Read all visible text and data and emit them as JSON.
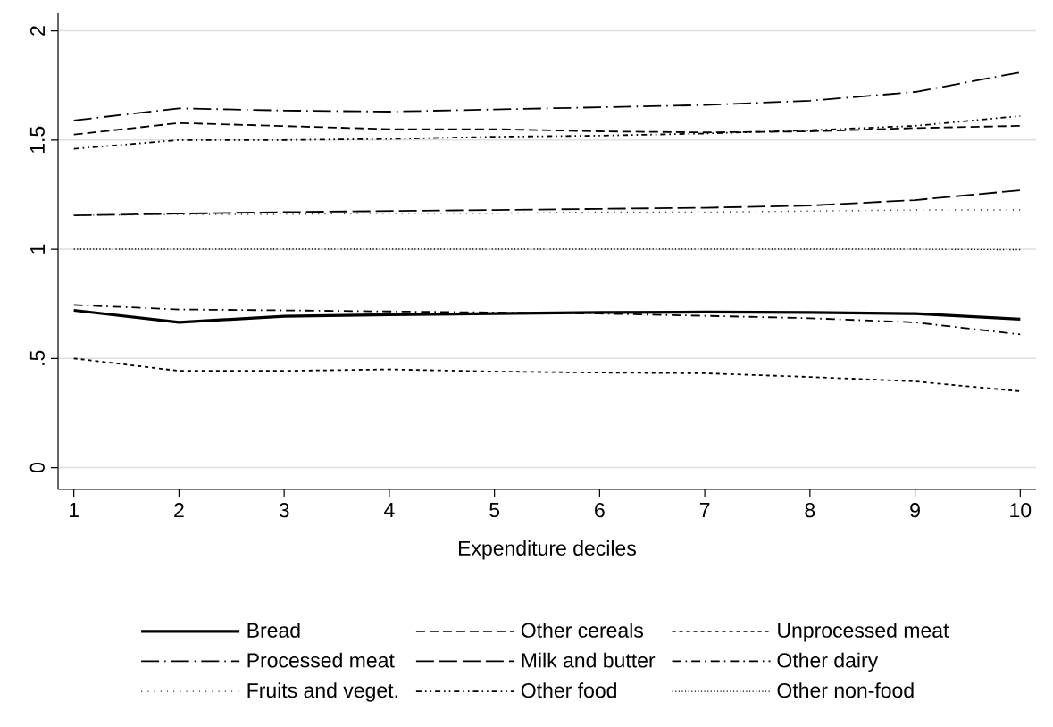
{
  "chart_data": {
    "type": "line",
    "xlabel": "Expenditure deciles",
    "x": [
      1,
      2,
      3,
      4,
      5,
      6,
      7,
      8,
      9,
      10
    ],
    "xlim": [
      0.85,
      10.15
    ],
    "xticks": [
      1,
      2,
      3,
      4,
      5,
      6,
      7,
      8,
      9,
      10
    ],
    "ylim": [
      -0.1,
      2.08
    ],
    "yticks": [
      0,
      {
        "value": 0.5,
        "label": ".5"
      },
      1,
      1.5,
      2
    ],
    "grid": "y",
    "legend": "bottom",
    "series": [
      {
        "name": "Bread",
        "color": "#000000",
        "line_style": "solid",
        "values": [
          0.72,
          0.665,
          0.693,
          0.7,
          0.705,
          0.71,
          0.712,
          0.71,
          0.705,
          0.68
        ]
      },
      {
        "name": "Other cereals",
        "color": "#000000",
        "line_style": "dashed",
        "values": [
          1.525,
          1.578,
          1.564,
          1.55,
          1.55,
          1.54,
          1.535,
          1.54,
          1.555,
          1.565
        ]
      },
      {
        "name": "Unprocessed meat",
        "color": "#000000",
        "line_style": "dotted",
        "values": [
          0.5,
          0.443,
          0.443,
          0.45,
          0.44,
          0.435,
          0.432,
          0.415,
          0.395,
          0.35
        ]
      },
      {
        "name": "Processed meat",
        "color": "#000000",
        "line_style": "longdashdot",
        "values": [
          1.59,
          1.645,
          1.635,
          1.63,
          1.64,
          1.65,
          1.66,
          1.68,
          1.72,
          1.81
        ]
      },
      {
        "name": "Milk and butter",
        "color": "#000000",
        "line_style": "longdash",
        "values": [
          1.155,
          1.163,
          1.17,
          1.175,
          1.18,
          1.185,
          1.19,
          1.2,
          1.225,
          1.27
        ]
      },
      {
        "name": "Other dairy",
        "color": "#000000",
        "line_style": "dashdot",
        "values": [
          0.745,
          0.724,
          0.72,
          0.715,
          0.71,
          0.705,
          0.695,
          0.684,
          0.665,
          0.61
        ]
      },
      {
        "name": "Fruits and veget.",
        "color": "#333333",
        "line_style": "looselydotted",
        "values": [
          1.155,
          1.16,
          1.16,
          1.165,
          1.165,
          1.17,
          1.17,
          1.175,
          1.18,
          1.18
        ]
      },
      {
        "name": "Other food",
        "color": "#000000",
        "line_style": "dashdotdot",
        "values": [
          1.46,
          1.5,
          1.5,
          1.505,
          1.515,
          1.52,
          1.53,
          1.545,
          1.565,
          1.61
        ]
      },
      {
        "name": "Other non-food",
        "color": "#000000",
        "line_style": "denselydotted",
        "values": [
          1.0,
          1.0,
          1.0,
          1.0,
          1.0,
          1.0,
          1.0,
          1.0,
          1.0,
          0.998
        ]
      }
    ]
  }
}
